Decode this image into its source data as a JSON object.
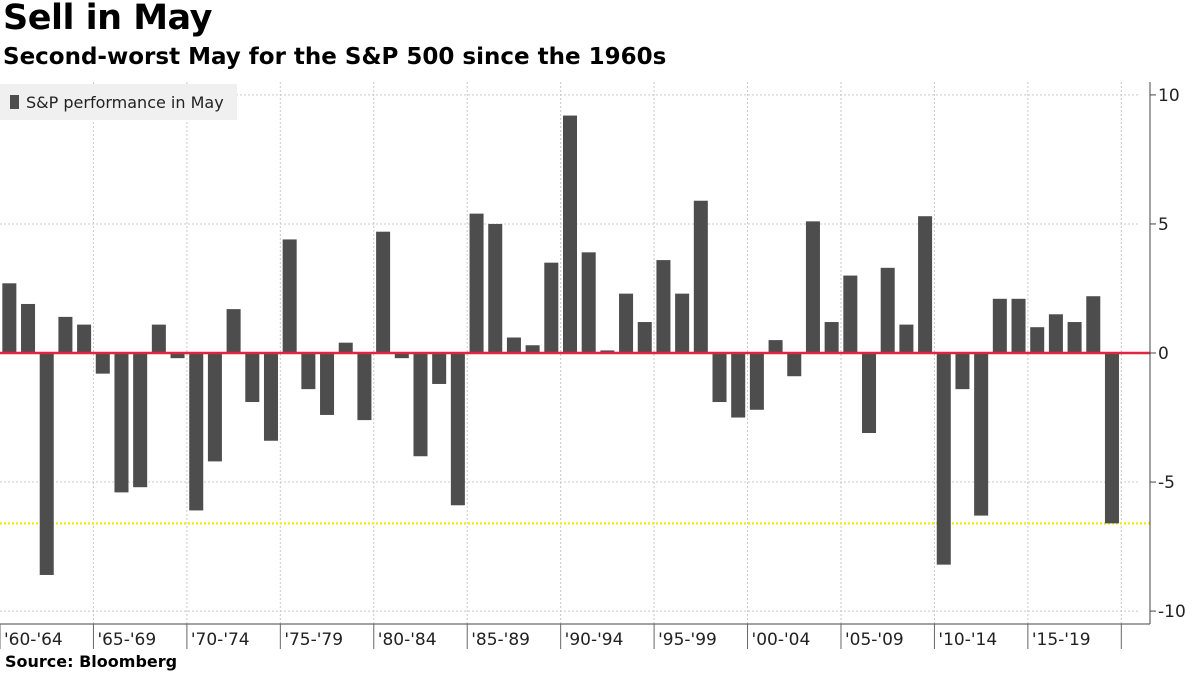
{
  "header": {
    "title": "Sell in May",
    "subtitle": "Second-worst May for the S&P 500 since the 1960s"
  },
  "footer": {
    "source": "Source: Bloomberg"
  },
  "colors": {
    "bar": "#4d4d4d",
    "zero_line": "#e0263d",
    "reference_line": "#f2ee1c",
    "grid": "#c8c8c8",
    "legend_bg": "#f0f0f0"
  },
  "chart_data": {
    "type": "bar",
    "title": "Sell in May",
    "subtitle": "Second-worst May for the S&P 500 since the 1960s",
    "ylim": [
      -10.5,
      10.5
    ],
    "y_ticks": [
      10,
      5,
      0,
      -5,
      -10
    ],
    "y_axis_side": "right",
    "grid": true,
    "legend_position": "top-left",
    "x_tick_labels": [
      "'60-'64",
      "'65-'69",
      "'70-'74",
      "'75-'79",
      "'80-'84",
      "'85-'89",
      "'90-'94",
      "'95-'99",
      "'00-'04",
      "'05-'09",
      "'10-'14",
      "'15-'19"
    ],
    "categories": [
      1960,
      1961,
      1962,
      1963,
      1964,
      1965,
      1966,
      1967,
      1968,
      1969,
      1970,
      1971,
      1972,
      1973,
      1974,
      1975,
      1976,
      1977,
      1978,
      1979,
      1980,
      1981,
      1982,
      1983,
      1984,
      1985,
      1986,
      1987,
      1988,
      1989,
      1990,
      1991,
      1992,
      1993,
      1994,
      1995,
      1996,
      1997,
      1998,
      1999,
      2000,
      2001,
      2002,
      2003,
      2004,
      2005,
      2006,
      2007,
      2008,
      2009,
      2010,
      2011,
      2012,
      2013,
      2014,
      2015,
      2016,
      2017,
      2018,
      2019
    ],
    "series": [
      {
        "name": "S&P performance in May",
        "values": [
          2.7,
          1.9,
          -8.6,
          1.4,
          1.1,
          -0.8,
          -5.4,
          -5.2,
          1.1,
          -0.2,
          -6.1,
          -4.2,
          1.7,
          -1.9,
          -3.4,
          4.4,
          -1.4,
          -2.4,
          0.4,
          -2.6,
          4.7,
          -0.2,
          -4.0,
          -1.2,
          -5.9,
          5.4,
          5.0,
          0.6,
          0.3,
          3.5,
          9.2,
          3.9,
          0.1,
          2.3,
          1.2,
          3.6,
          2.3,
          5.9,
          -1.9,
          -2.5,
          -2.2,
          0.5,
          -0.9,
          5.1,
          1.2,
          3.0,
          -3.1,
          3.3,
          1.1,
          5.3,
          -8.2,
          -1.4,
          -6.3,
          2.1,
          2.1,
          1.0,
          1.5,
          1.2,
          2.2,
          -6.6
        ]
      }
    ],
    "reference_line": {
      "value": -6.6,
      "style": "dotted"
    }
  }
}
